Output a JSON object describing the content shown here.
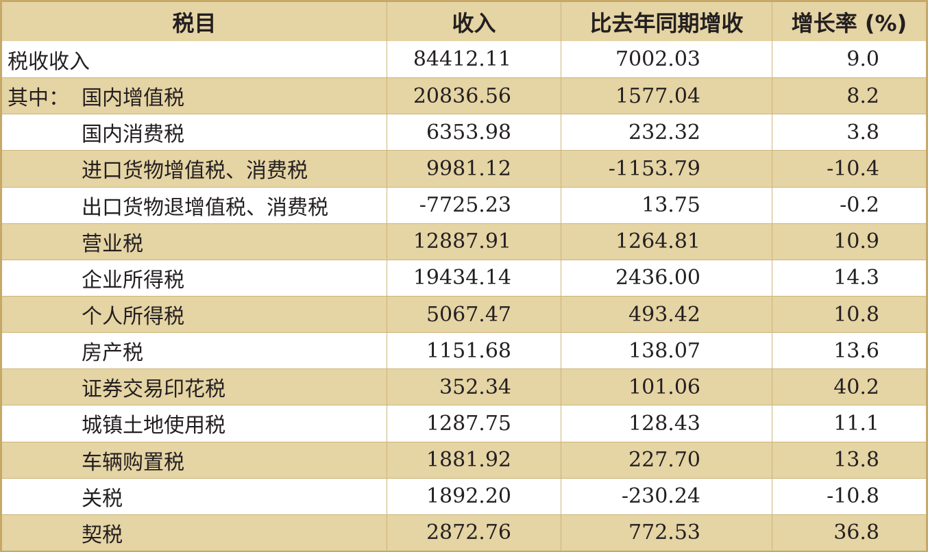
{
  "table": {
    "headers": [
      "税目",
      "收入",
      "比去年同期增收",
      "增长率 (%)"
    ],
    "rows": [
      {
        "prefix": "",
        "name": "税收收入",
        "income": "84412.11",
        "increase": "7002.03",
        "rate": "9.0"
      },
      {
        "prefix": "其中：",
        "name": "国内增值税",
        "income": "20836.56",
        "increase": "1577.04",
        "rate": "8.2"
      },
      {
        "prefix": "",
        "name": "国内消费税",
        "income": "6353.98",
        "increase": "232.32",
        "rate": "3.8"
      },
      {
        "prefix": "",
        "name": "进口货物增值税、消费税",
        "income": "9981.12",
        "increase": "-1153.79",
        "rate": "-10.4"
      },
      {
        "prefix": "",
        "name": "出口货物退增值税、消费税",
        "income": "-7725.23",
        "increase": "13.75",
        "rate": "-0.2"
      },
      {
        "prefix": "",
        "name": "营业税",
        "income": "12887.91",
        "increase": "1264.81",
        "rate": "10.9"
      },
      {
        "prefix": "",
        "name": "企业所得税",
        "income": "19434.14",
        "increase": "2436.00",
        "rate": "14.3"
      },
      {
        "prefix": "",
        "name": "个人所得税",
        "income": "5067.47",
        "increase": "493.42",
        "rate": "10.8"
      },
      {
        "prefix": "",
        "name": "房产税",
        "income": "1151.68",
        "increase": "138.07",
        "rate": "13.6"
      },
      {
        "prefix": "",
        "name": "证券交易印花税",
        "income": "352.34",
        "increase": "101.06",
        "rate": "40.2"
      },
      {
        "prefix": "",
        "name": "城镇土地使用税",
        "income": "1287.75",
        "increase": "128.43",
        "rate": "11.1"
      },
      {
        "prefix": "",
        "name": "车辆购置税",
        "income": "1881.92",
        "increase": "227.70",
        "rate": "13.8"
      },
      {
        "prefix": "",
        "name": "关税",
        "income": "1892.20",
        "increase": "-230.24",
        "rate": "-10.8"
      },
      {
        "prefix": "",
        "name": "契税",
        "income": "2872.76",
        "increase": "772.53",
        "rate": "36.8"
      }
    ]
  },
  "colors": {
    "band": "#e5d4a4",
    "border": "#c6a868",
    "text": "#231f20"
  }
}
